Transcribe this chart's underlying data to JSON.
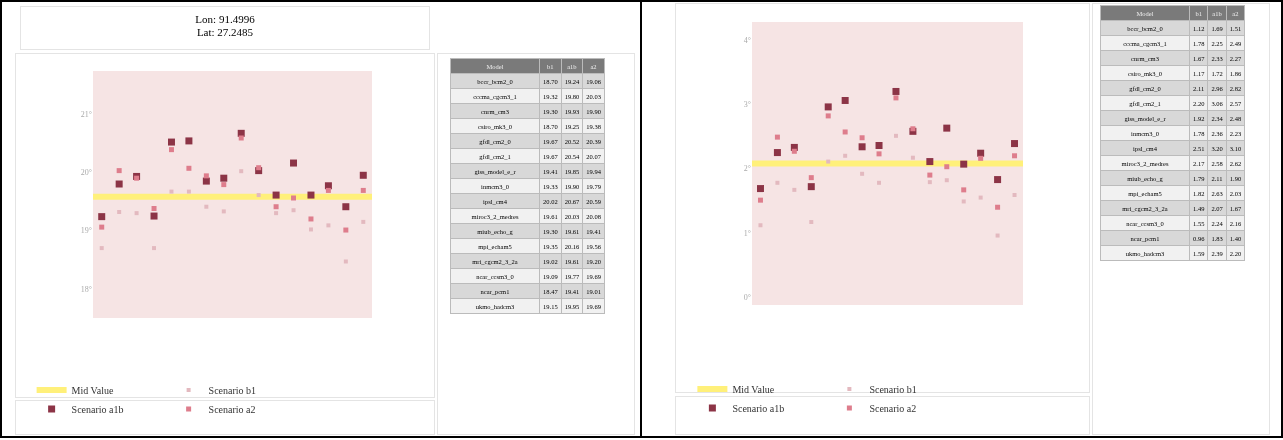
{
  "chart_data": [
    {
      "type": "scatter",
      "title": "Lon: 91.4996\nLat: 27.2485",
      "categories": [
        null,
        null,
        null,
        null,
        null,
        null,
        null,
        null,
        null,
        null,
        null,
        null,
        null,
        null,
        null,
        null
      ],
      "series": [
        {
          "name": "Scenario b1",
          "color": "#e3b9bf",
          "values": [
            18.7,
            19.32,
            19.3,
            18.7,
            19.67,
            19.67,
            19.41,
            19.33,
            20.02,
            19.61,
            19.3,
            19.35,
            19.02,
            19.09,
            18.47,
            19.15
          ]
        },
        {
          "name": "Scenario a1b",
          "color": "#8c3446",
          "values": [
            19.24,
            19.8,
            19.93,
            19.25,
            20.52,
            20.54,
            19.85,
            19.9,
            20.67,
            20.03,
            19.61,
            20.16,
            19.61,
            19.77,
            19.41,
            19.95
          ]
        },
        {
          "name": "Scenario a2",
          "color": "#de7d8c",
          "values": [
            19.06,
            20.03,
            19.9,
            19.38,
            20.39,
            20.07,
            19.94,
            19.79,
            20.59,
            20.08,
            19.41,
            19.56,
            19.2,
            19.69,
            19.01,
            19.69
          ]
        }
      ],
      "ref_lines": [
        {
          "axis": "y",
          "value": 19.58,
          "label": "Mid Value",
          "color": "#fff07a"
        }
      ],
      "ylim": [
        17.5,
        21.74
      ],
      "yticks": [
        {
          "value": 18,
          "label": "18°"
        },
        {
          "value": 19,
          "label": "19°"
        },
        {
          "value": 20,
          "label": "20°"
        },
        {
          "value": 21,
          "label": "21°"
        }
      ],
      "tick_labels": "y",
      "grid": false,
      "legend": "bottom",
      "marker": "square"
    },
    {
      "type": "heatmap",
      "ylabel": "Model",
      "categories": [
        "b1",
        "a1b",
        "a2"
      ],
      "y_categories": [
        "bccr_bcm2_0",
        "cccma_cgcm3_1",
        "cnrm_cm3",
        "csiro_mk3_0",
        "gfdl_cm2_0",
        "gfdl_cm2_1",
        "giss_model_e_r",
        "inmcm3_0",
        "ipsl_cm4",
        "miroc3_2_medres",
        "miub_echo_g",
        "mpi_echam5",
        "mri_cgcm2_3_2a",
        "ncar_ccsm3_0",
        "ncar_pcm1",
        "ukmo_hadcm3"
      ],
      "cells": [
        [
          "18.70",
          "19.24",
          "19.06"
        ],
        [
          "19.32",
          "19.80",
          "20.03"
        ],
        [
          "19.30",
          "19.93",
          "19.90"
        ],
        [
          "18.70",
          "19.25",
          "19.38"
        ],
        [
          "19.67",
          "20.52",
          "20.39"
        ],
        [
          "19.67",
          "20.54",
          "20.07"
        ],
        [
          "19.41",
          "19.85",
          "19.94"
        ],
        [
          "19.33",
          "19.90",
          "19.79"
        ],
        [
          "20.02",
          "20.67",
          "20.59"
        ],
        [
          "19.61",
          "20.03",
          "20.08"
        ],
        [
          "19.30",
          "19.61",
          "19.41"
        ],
        [
          "19.35",
          "20.16",
          "19.56"
        ],
        [
          "19.02",
          "19.61",
          "19.20"
        ],
        [
          "19.09",
          "19.77",
          "19.69"
        ],
        [
          "18.47",
          "19.41",
          "19.01"
        ],
        [
          "19.15",
          "19.95",
          "19.69"
        ]
      ]
    },
    {
      "type": "scatter",
      "categories": [
        null,
        null,
        null,
        null,
        null,
        null,
        null,
        null,
        null,
        null,
        null,
        null,
        null,
        null,
        null,
        null
      ],
      "series": [
        {
          "name": "Scenario b1",
          "color": "#e3b9bf",
          "values": [
            1.12,
            1.78,
            1.67,
            1.17,
            2.11,
            2.2,
            1.92,
            1.78,
            2.51,
            2.17,
            1.79,
            1.82,
            1.49,
            1.55,
            0.96,
            1.59
          ]
        },
        {
          "name": "Scenario a1b",
          "color": "#8c3446",
          "values": [
            1.69,
            2.25,
            2.33,
            1.72,
            2.96,
            3.06,
            2.34,
            2.36,
            3.2,
            2.58,
            2.11,
            2.63,
            2.07,
            2.24,
            1.83,
            2.39
          ]
        },
        {
          "name": "Scenario a2",
          "color": "#de7d8c",
          "values": [
            1.51,
            2.49,
            2.27,
            1.86,
            2.82,
            2.57,
            2.48,
            2.23,
            3.1,
            2.62,
            1.9,
            2.03,
            1.67,
            2.16,
            1.4,
            2.2
          ]
        }
      ],
      "ref_lines": [
        {
          "axis": "y",
          "value": 2.08,
          "label": "Mid Value",
          "color": "#fff07a"
        }
      ],
      "ylim": [
        -0.12,
        4.28
      ],
      "yticks": [
        {
          "value": 0,
          "label": "0°"
        },
        {
          "value": 1,
          "label": "1°"
        },
        {
          "value": 2,
          "label": "2°"
        },
        {
          "value": 3,
          "label": "3°"
        },
        {
          "value": 4,
          "label": "4°"
        }
      ],
      "tick_labels": "y",
      "grid": false,
      "legend": "bottom",
      "marker": "square"
    },
    {
      "type": "heatmap",
      "ylabel": "Model",
      "categories": [
        "b1",
        "a1b",
        "a2"
      ],
      "y_categories": [
        "bccr_bcm2_0",
        "cccma_cgcm3_1",
        "cnrm_cm3",
        "csiro_mk3_0",
        "gfdl_cm2_0",
        "gfdl_cm2_1",
        "giss_model_e_r",
        "inmcm3_0",
        "ipsl_cm4",
        "miroc3_2_medres",
        "miub_echo_g",
        "mpi_echam5",
        "mri_cgcm2_3_2a",
        "ncar_ccsm3_0",
        "ncar_pcm1",
        "ukmo_hadcm3"
      ],
      "cells": [
        [
          "1.12",
          "1.69",
          "1.51"
        ],
        [
          "1.78",
          "2.25",
          "2.49"
        ],
        [
          "1.67",
          "2.33",
          "2.27"
        ],
        [
          "1.17",
          "1.72",
          "1.86"
        ],
        [
          "2.11",
          "2.96",
          "2.82"
        ],
        [
          "2.20",
          "3.06",
          "2.57"
        ],
        [
          "1.92",
          "2.34",
          "2.48"
        ],
        [
          "1.78",
          "2.36",
          "2.23"
        ],
        [
          "2.51",
          "3.20",
          "3.10"
        ],
        [
          "2.17",
          "2.58",
          "2.62"
        ],
        [
          "1.79",
          "2.11",
          "1.90"
        ],
        [
          "1.82",
          "2.63",
          "2.03"
        ],
        [
          "1.49",
          "2.07",
          "1.67"
        ],
        [
          "1.55",
          "2.24",
          "2.16"
        ],
        [
          "0.96",
          "1.83",
          "1.40"
        ],
        [
          "1.59",
          "2.39",
          "2.20"
        ]
      ]
    }
  ]
}
